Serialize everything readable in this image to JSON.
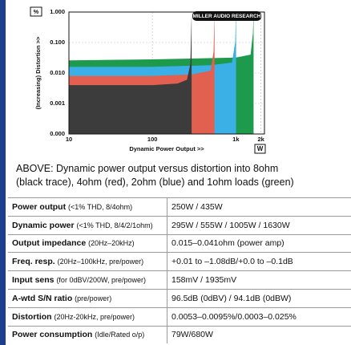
{
  "chart_data": {
    "type": "area",
    "y_unit": "%",
    "y_label": "(Increasing) Distortion >>",
    "x_label": "Dynamic Power Output >>",
    "x_unit": "W",
    "logo": "MILLER AUDIO RESEARCH",
    "xlim": [
      10,
      2200
    ],
    "ylim": [
      0.0001,
      1
    ],
    "x_log": true,
    "y_log": true,
    "grid": true,
    "xticks": [
      10,
      100,
      {
        "value": 1000,
        "label": "1k"
      },
      {
        "value": 2000,
        "label": "2k"
      }
    ],
    "yticks": [
      {
        "value": 0.0001,
        "label": "0.000"
      },
      {
        "value": 0.001,
        "label": "0.001"
      },
      {
        "value": 0.01,
        "label": "0.010"
      },
      {
        "value": 0.1,
        "label": "0.100"
      },
      {
        "value": 1,
        "label": "1.000"
      }
    ],
    "series": [
      {
        "color": "#1e9a4c",
        "x": [
          10,
          100,
          1000,
          1500,
          1600,
          1630
        ],
        "values": [
          0.026,
          0.028,
          0.032,
          0.04,
          0.2,
          1
        ]
      },
      {
        "color": "#3ab0e6",
        "x": [
          10,
          100,
          500,
          900,
          980,
          1005
        ],
        "values": [
          0.016,
          0.016,
          0.018,
          0.022,
          0.1,
          1
        ]
      },
      {
        "color": "#e2604f",
        "x": [
          10,
          100,
          300,
          500,
          540,
          555
        ],
        "values": [
          0.008,
          0.008,
          0.009,
          0.012,
          0.05,
          1
        ]
      },
      {
        "color": "#3c3c3c",
        "x": [
          10,
          100,
          200,
          260,
          285,
          295
        ],
        "values": [
          0.004,
          0.004,
          0.0045,
          0.006,
          0.02,
          1
        ]
      }
    ]
  },
  "caption": [
    "ABOVE: Dynamic power output versus distortion into 8ohm",
    "(black trace), 4ohm (red), 2ohm (blue) and 1ohm loads (green)"
  ],
  "table": {
    "rows": [
      {
        "label": "Power output",
        "note": "(<1% THD, 8/4ohm)",
        "value": "250W / 435W"
      },
      {
        "label": "Dynamic power",
        "note": "(<1% THD, 8/4/2/1ohm)",
        "value": "295W / 555W / 1005W / 1630W"
      },
      {
        "label": "Output impedance",
        "note": "(20Hz–20kHz)",
        "value": "0.015–0.041ohm (power amp)"
      },
      {
        "label": "Freq. resp.",
        "note": "(20Hz–100kHz, pre/power)",
        "value": "+0.01 to –1.08dB/+0.0 to –0.1dB"
      },
      {
        "label": "Input sens",
        "note": "(for 0dBV/200W, pre/power)",
        "value": "158mV / 1935mV"
      },
      {
        "label": "A-wtd S/N ratio",
        "note": "(pre/power)",
        "value": "96.5dB (0dBV) / 94.1dB (0dBW)"
      },
      {
        "label": "Distortion",
        "note": "(20Hz-20kHz, pre/power)",
        "value": "0.0053–0.0095%/0.0003–0.025%"
      },
      {
        "label": "Power consumption",
        "note": "(Idle/Rated o/p)",
        "value": "79W/680W"
      }
    ]
  }
}
